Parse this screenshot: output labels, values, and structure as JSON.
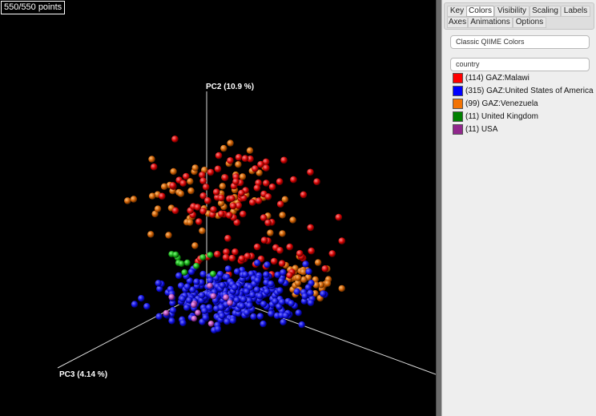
{
  "counter": "550/550 points",
  "axes": {
    "pc2": "PC2 (10.9 %)",
    "pc3": "PC3 (4.14 %)"
  },
  "tabs": [
    "Key",
    "Colors",
    "Visibility",
    "Scaling",
    "Labels",
    "Axes",
    "Animations",
    "Options"
  ],
  "active_tab": "Colors",
  "color_scheme": "Classic QIIME Colors",
  "category": "country",
  "legend": [
    {
      "label": "(114) GAZ:Malawi",
      "color": "#ff0000"
    },
    {
      "label": "(315) GAZ:United States of America",
      "color": "#0000ff"
    },
    {
      "label": "(99) GAZ:Venezuela",
      "color": "#f27304"
    },
    {
      "label": "(11) United Kingdom",
      "color": "#008000"
    },
    {
      "label": "(11) USA",
      "color": "#91278d"
    }
  ]
}
